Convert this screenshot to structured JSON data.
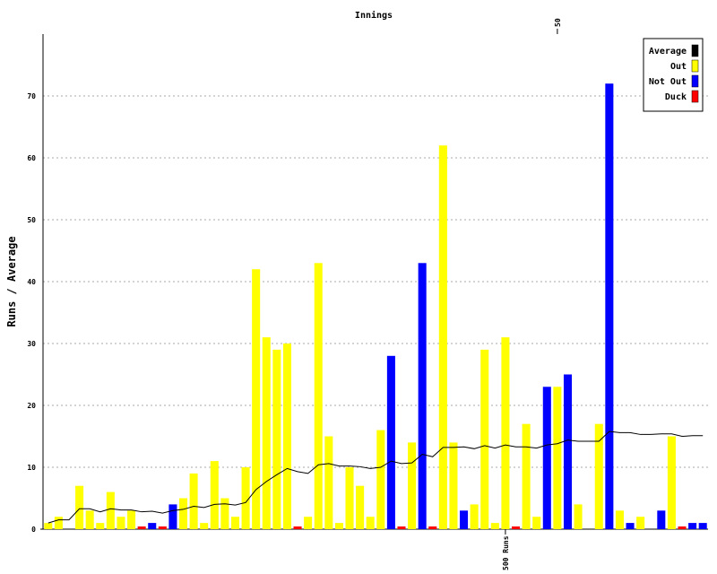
{
  "chart_data": {
    "type": "bar",
    "title": "Innings",
    "y_label": "Runs / Average",
    "x": [
      1,
      2,
      3,
      4,
      5,
      6,
      7,
      8,
      9,
      10,
      11,
      12,
      13,
      14,
      15,
      16,
      17,
      18,
      19,
      20,
      21,
      22,
      23,
      24,
      25,
      26,
      27,
      28,
      29,
      30,
      31,
      32,
      33,
      34,
      35,
      36,
      37,
      38,
      39,
      40,
      41,
      42,
      43,
      44,
      45,
      46,
      47,
      48,
      49,
      50,
      51,
      52,
      53,
      54,
      55,
      56,
      57,
      58,
      59,
      60,
      61,
      62,
      63,
      64
    ],
    "xlim": [
      0.5,
      64.5
    ],
    "ylim": [
      0,
      80
    ],
    "yticks": [
      0,
      10,
      20,
      30,
      40,
      50,
      60,
      70
    ],
    "grid": true,
    "legend": "top-right",
    "series": [
      {
        "name": "Average",
        "type": "line",
        "color": "#000000",
        "values": [
          1,
          1.5,
          1.5,
          3.3,
          3.3,
          2.8,
          3.3,
          3.1,
          3.1,
          2.8,
          2.9,
          2.6,
          3,
          3.2,
          3.7,
          3.5,
          4,
          4.1,
          3.9,
          4.3,
          6.4,
          7.7,
          8.8,
          9.8,
          9.3,
          9,
          10.4,
          10.6,
          10.2,
          10.2,
          10.1,
          9.8,
          10,
          11,
          10.6,
          10.7,
          12.1,
          11.7,
          13.2,
          13.2,
          13.3,
          13,
          13.5,
          13.1,
          13.6,
          13.3,
          13.3,
          13.1,
          13.6,
          13.8,
          14.4,
          14.2,
          14.2,
          14.2,
          15.8,
          15.6,
          15.6,
          15.3,
          15.3,
          15.4,
          15.4,
          15,
          15.1,
          15.1
        ]
      },
      {
        "name": "Out",
        "type": "bar",
        "color": "#ffff00",
        "values": [
          1,
          2,
          null,
          7,
          3,
          1,
          6,
          2,
          3,
          null,
          null,
          null,
          null,
          5,
          9,
          1,
          11,
          5,
          2,
          10,
          42,
          31,
          29,
          30,
          null,
          2,
          43,
          15,
          1,
          10,
          7,
          2,
          16,
          null,
          null,
          14,
          null,
          null,
          62,
          14,
          null,
          4,
          29,
          1,
          31,
          null,
          17,
          2,
          null,
          23,
          null,
          4,
          null,
          17,
          null,
          3,
          null,
          2,
          null,
          null,
          15,
          null,
          null,
          null
        ]
      },
      {
        "name": "Not Out",
        "type": "bar",
        "color": "#0000ff",
        "values": [
          null,
          null,
          null,
          null,
          null,
          null,
          null,
          null,
          null,
          null,
          1,
          null,
          4,
          null,
          null,
          null,
          null,
          null,
          null,
          null,
          null,
          null,
          null,
          null,
          null,
          null,
          null,
          null,
          null,
          null,
          null,
          null,
          null,
          28,
          null,
          null,
          43,
          null,
          null,
          null,
          3,
          null,
          null,
          null,
          null,
          null,
          null,
          null,
          23,
          null,
          25,
          null,
          null,
          null,
          72,
          null,
          1,
          null,
          null,
          3,
          null,
          null,
          1,
          1
        ]
      },
      {
        "name": "Duck",
        "type": "bar",
        "color": "#ff0000",
        "values": [
          null,
          null,
          null,
          null,
          null,
          null,
          null,
          null,
          null,
          0,
          null,
          0,
          null,
          null,
          null,
          null,
          null,
          null,
          null,
          null,
          null,
          null,
          null,
          null,
          0,
          null,
          null,
          null,
          null,
          null,
          null,
          null,
          null,
          null,
          0,
          null,
          null,
          0,
          null,
          null,
          null,
          null,
          null,
          null,
          null,
          0,
          null,
          null,
          null,
          null,
          null,
          null,
          null,
          null,
          null,
          null,
          null,
          null,
          null,
          null,
          null,
          0,
          null,
          null
        ]
      }
    ],
    "annotations": [
      {
        "label": "50",
        "x": 50,
        "position": "top"
      },
      {
        "label": "500 Runs",
        "x": 45,
        "position": "bottom"
      }
    ]
  }
}
